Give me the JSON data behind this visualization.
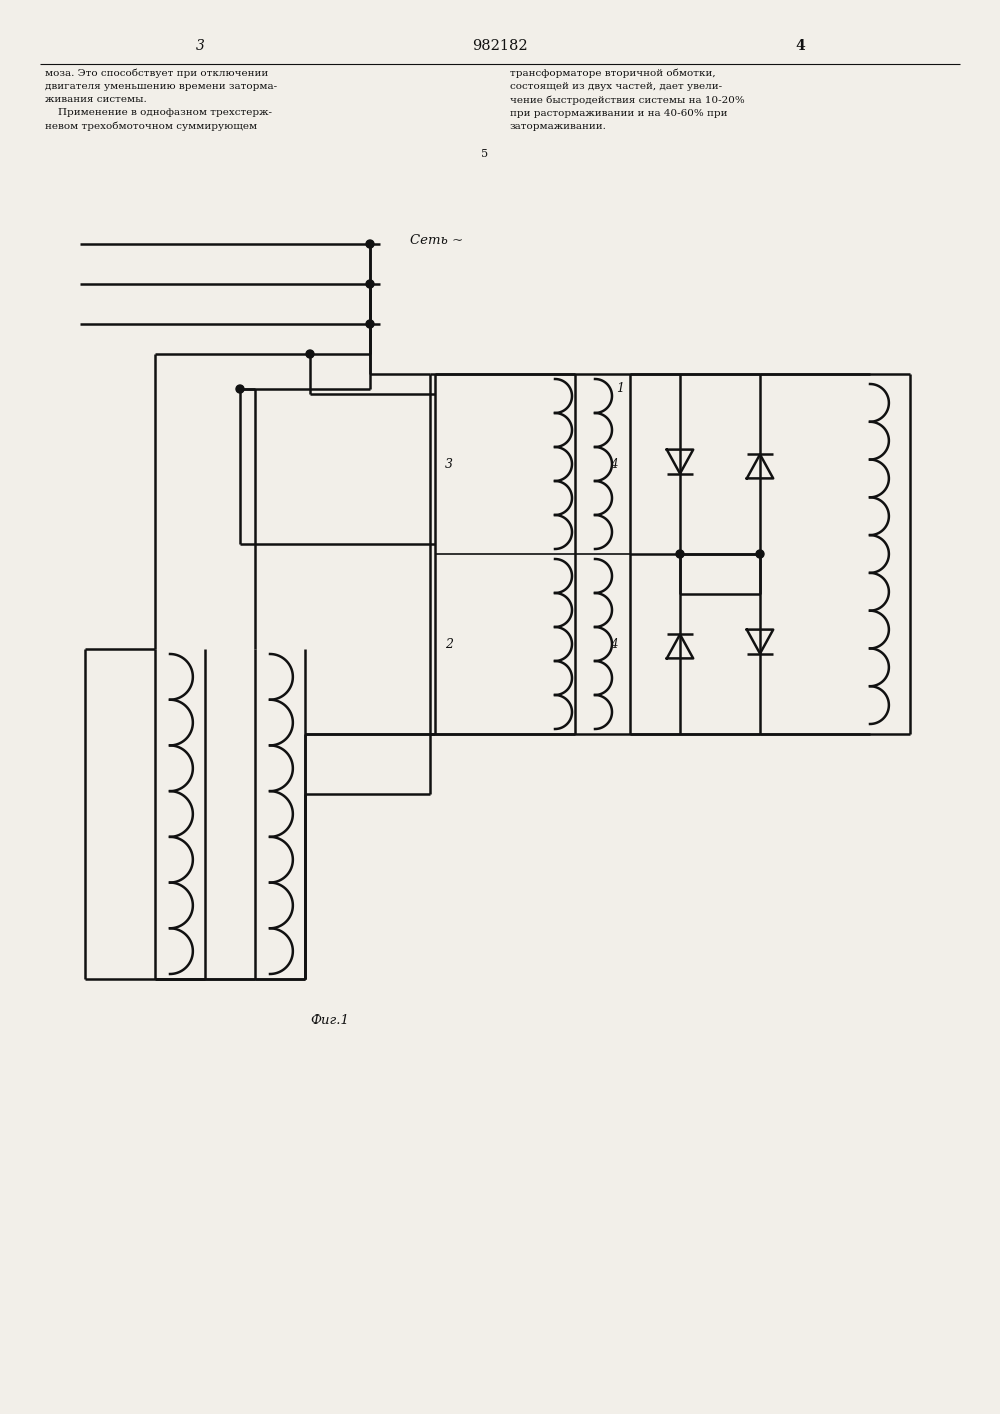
{
  "bg_color": "#f2efe9",
  "line_color": "#111111",
  "text_color": "#111111",
  "title": "982182",
  "page_left": "3",
  "page_right": "4",
  "label_set": "Сеть ~",
  "label_1": "1",
  "label_2": "2",
  "label_3": "3",
  "label_4a": "4",
  "label_4b": "4",
  "fig_label": "Фиг.1",
  "col5": "5",
  "text_left": "моза. Это способствует при отключении\nдвигателя уменьшению времени заторма-\nживания системы.\n    Применение в однофазном трехстерж-\nневом трехобмоточном суммирующем",
  "text_right": "трансформаторе вторичной обмотки,\nсостоящей из двух частей, дает увели-\nчение быстродействия системы на 10-20%\nпри растормаживании и на 40-60% при\nзатормаживании."
}
